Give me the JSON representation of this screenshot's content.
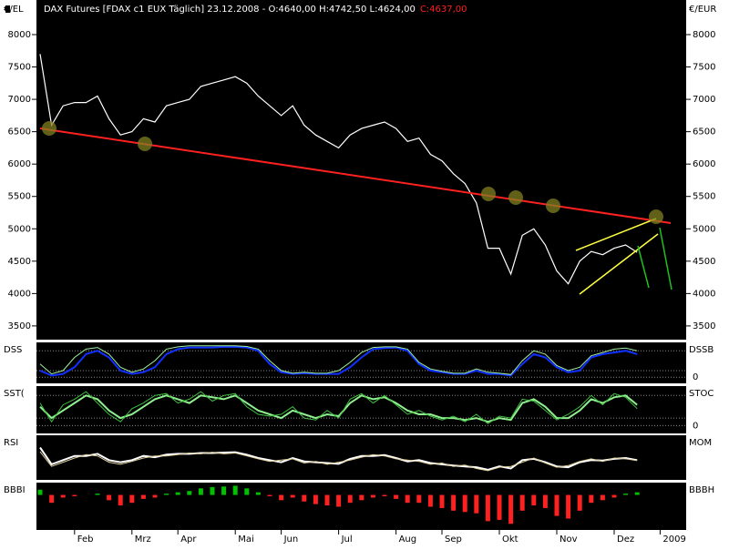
{
  "chart_data": [
    {
      "type": "line",
      "title": "DAX Futures [FDAX c1 EUX  Täglich] 23.12.2008 - O:4640,00 H:4742,50 L:4624,00",
      "title_close": "C:4637,00",
      "y_label_left": "€/EL",
      "y_label_right": "€/EUR",
      "color": "#ffffff",
      "categories": [
        null,
        null,
        null,
        "Feb",
        null,
        null,
        null,
        null,
        "Mrz",
        null,
        null,
        null,
        "Apr",
        null,
        null,
        null,
        null,
        "Mai",
        null,
        null,
        null,
        "Jun",
        null,
        null,
        null,
        null,
        "Jul",
        null,
        null,
        null,
        null,
        "Aug",
        null,
        null,
        null,
        "Sep",
        null,
        null,
        null,
        null,
        "Okt",
        null,
        null,
        null,
        null,
        "Nov",
        null,
        null,
        null,
        null,
        "Dez",
        null,
        null,
        null,
        "2009"
      ],
      "values": [
        7700,
        6600,
        6900,
        6950,
        6950,
        7050,
        6700,
        6450,
        6500,
        6700,
        6650,
        6900,
        6950,
        7000,
        7200,
        7250,
        7300,
        7350,
        7250,
        7050,
        6900,
        6750,
        6900,
        6600,
        6450,
        6350,
        6250,
        6450,
        6550,
        6600,
        6650,
        6550,
        6350,
        6400,
        6150,
        6050,
        5850,
        5700,
        5400,
        4700,
        4700,
        4300,
        4900,
        5000,
        4750,
        4350,
        4150,
        4500,
        4650,
        4600,
        4700,
        4750,
        4637,
        null,
        null
      ],
      "ylim": [
        3330,
        8225
      ],
      "yticks": [
        3500,
        4000,
        4500,
        5000,
        5500,
        6000,
        6500,
        7000,
        7500,
        8000
      ]
    },
    {
      "type": "line",
      "ylim": [
        -16,
        100
      ],
      "yticks": [
        0
      ],
      "levels": [
        20,
        80
      ],
      "series": [
        {
          "name": "DSS",
          "color": "#1030ff",
          "values": [
            20,
            5,
            10,
            30,
            70,
            80,
            60,
            20,
            10,
            15,
            30,
            70,
            85,
            90,
            90,
            90,
            92,
            92,
            90,
            80,
            40,
            15,
            10,
            12,
            10,
            10,
            10,
            30,
            60,
            85,
            88,
            90,
            80,
            40,
            20,
            15,
            10,
            10,
            20,
            10,
            10,
            5,
            40,
            70,
            60,
            30,
            15,
            20,
            60,
            70,
            75,
            80,
            70
          ]
        },
        {
          "name": "DSSB",
          "color": "#a0f0a0",
          "values": [
            40,
            10,
            20,
            60,
            85,
            90,
            70,
            30,
            15,
            25,
            50,
            85,
            92,
            95,
            95,
            95,
            95,
            95,
            93,
            85,
            50,
            20,
            12,
            15,
            12,
            12,
            20,
            45,
            75,
            90,
            92,
            92,
            85,
            45,
            25,
            18,
            12,
            12,
            25,
            15,
            12,
            8,
            50,
            80,
            70,
            35,
            20,
            30,
            65,
            75,
            85,
            88,
            80
          ]
        }
      ]
    },
    {
      "type": "line",
      "ylim": [
        -16,
        100
      ],
      "yticks": [
        0
      ],
      "levels": [
        20,
        80
      ],
      "series": [
        {
          "name": "SST(",
          "color": "#90f090",
          "values": [
            50,
            20,
            40,
            60,
            80,
            70,
            40,
            20,
            30,
            50,
            70,
            80,
            70,
            60,
            80,
            75,
            70,
            80,
            60,
            40,
            30,
            20,
            40,
            30,
            20,
            30,
            25,
            60,
            80,
            70,
            75,
            60,
            40,
            30,
            30,
            20,
            20,
            15,
            20,
            10,
            20,
            15,
            60,
            70,
            50,
            20,
            20,
            40,
            70,
            60,
            75,
            80,
            55
          ]
        },
        {
          "name": "STOC",
          "color": "#40c040",
          "values": [
            60,
            10,
            55,
            70,
            90,
            60,
            30,
            10,
            45,
            60,
            80,
            85,
            60,
            70,
            90,
            65,
            80,
            85,
            50,
            30,
            25,
            30,
            50,
            20,
            15,
            40,
            20,
            70,
            85,
            60,
            80,
            55,
            30,
            40,
            25,
            15,
            25,
            10,
            30,
            5,
            25,
            20,
            70,
            65,
            40,
            15,
            30,
            50,
            80,
            55,
            85,
            75,
            45
          ]
        }
      ]
    },
    {
      "type": "line",
      "ylim": [
        0,
        100
      ],
      "series": [
        {
          "name": "RSI",
          "color": "#ffffff",
          "values": [
            75,
            35,
            45,
            55,
            55,
            60,
            45,
            40,
            45,
            55,
            52,
            58,
            60,
            60,
            62,
            62,
            63,
            64,
            58,
            50,
            45,
            40,
            50,
            42,
            40,
            38,
            36,
            48,
            55,
            55,
            57,
            50,
            42,
            45,
            38,
            35,
            32,
            30,
            28,
            22,
            30,
            25,
            45,
            48,
            40,
            30,
            28,
            40,
            45,
            44,
            48,
            50,
            45
          ]
        },
        {
          "name": "MOM",
          "color": "#e0d0a0",
          "values": [
            65,
            30,
            40,
            50,
            58,
            55,
            40,
            35,
            42,
            50,
            55,
            55,
            58,
            62,
            60,
            64,
            60,
            62,
            55,
            48,
            42,
            45,
            48,
            38,
            42,
            35,
            40,
            45,
            52,
            58,
            55,
            48,
            45,
            42,
            35,
            38,
            30,
            33,
            25,
            20,
            28,
            30,
            40,
            50,
            38,
            28,
            32,
            42,
            48,
            42,
            50,
            48,
            44
          ]
        }
      ]
    },
    {
      "type": "bar",
      "label_right": "BBBH",
      "ylim": [
        -130,
        40
      ],
      "colors": {
        "positive": "#00c000",
        "negative": "#ff2020"
      },
      "series": [
        {
          "name": "BBBI",
          "values": [
            20,
            -30,
            -10,
            -5,
            0,
            5,
            -20,
            -40,
            -30,
            -15,
            -10,
            5,
            10,
            15,
            25,
            30,
            32,
            35,
            25,
            10,
            -5,
            -20,
            -10,
            -25,
            -35,
            -40,
            -45,
            -30,
            -20,
            -10,
            -5,
            -15,
            -30,
            -30,
            -45,
            -50,
            -60,
            -65,
            -70,
            -100,
            -95,
            -110,
            -60,
            -40,
            -50,
            -80,
            -90,
            -60,
            -30,
            -20,
            -10,
            5,
            10
          ]
        }
      ]
    }
  ]
}
